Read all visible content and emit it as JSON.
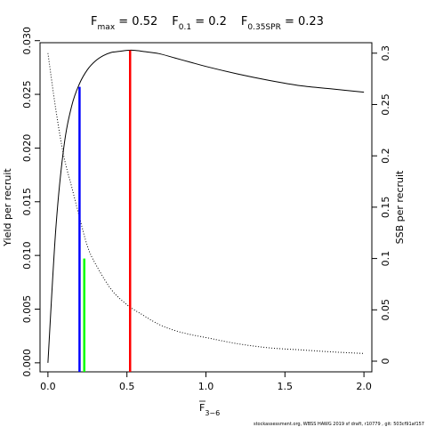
{
  "chart_data": {
    "type": "line",
    "title": {
      "fmax": {
        "sym": "F",
        "sub": "max",
        "val": " = 0.52"
      },
      "f01": {
        "sym": "F",
        "sub": "0.1",
        "val": " = 0.2"
      },
      "fspr": {
        "sym": "F",
        "sub": "0.35SPR",
        "val": " = 0.23"
      }
    },
    "xlabel": {
      "base": "F",
      "sub": "3−6"
    },
    "ylabel": "Yield per recruit",
    "y2label": "SSB per recruit",
    "xlim": [
      -0.05,
      2.05
    ],
    "ylim": [
      -0.00084,
      0.02981
    ],
    "y2lim": [
      -0.0104,
      0.3102
    ],
    "xticks": [
      "0.0",
      "0.5",
      "1.0",
      "1.5",
      "2.0"
    ],
    "xtick_values": [
      0,
      0.5,
      1.0,
      1.5,
      2.0
    ],
    "yticks": [
      "0.000",
      "0.005",
      "0.010",
      "0.015",
      "0.020",
      "0.025",
      "0.030"
    ],
    "ytick_values": [
      0,
      0.005,
      0.01,
      0.015,
      0.02,
      0.025,
      0.03
    ],
    "y2ticks": [
      "0",
      "0.05",
      "0.1",
      "0.15",
      "0.2",
      "0.25",
      "0.3"
    ],
    "y2tick_values": [
      0,
      0.05,
      0.1,
      0.15,
      0.2,
      0.25,
      0.3
    ],
    "series": [
      {
        "axis": "left",
        "style": "solid",
        "x": [
          0,
          0.05,
          0.1,
          0.15,
          0.2,
          0.25,
          0.3,
          0.35,
          0.4,
          0.45,
          0.5,
          0.55,
          0.6,
          0.7,
          0.8,
          0.9,
          1.0,
          1.2,
          1.4,
          1.6,
          1.8,
          2.0
        ],
        "values": [
          0.0,
          0.0125,
          0.02,
          0.0239,
          0.026,
          0.0273,
          0.0281,
          0.0286,
          0.0289,
          0.029,
          0.0291,
          0.0291,
          0.029,
          0.0288,
          0.0284,
          0.028,
          0.0276,
          0.0269,
          0.0263,
          0.0258,
          0.0255,
          0.0252
        ]
      },
      {
        "axis": "right",
        "style": "dotted",
        "x": [
          0,
          0.05,
          0.1,
          0.15,
          0.2,
          0.25,
          0.3,
          0.4,
          0.5,
          0.6,
          0.7,
          0.8,
          0.9,
          1.0,
          1.2,
          1.4,
          1.6,
          1.8,
          2.0
        ],
        "values": [
          0.3,
          0.245,
          0.2,
          0.17,
          0.14,
          0.112,
          0.095,
          0.07,
          0.055,
          0.045,
          0.036,
          0.03,
          0.026,
          0.023,
          0.017,
          0.013,
          0.011,
          0.009,
          0.0075
        ]
      }
    ],
    "reference_lines": [
      {
        "x": 0.2,
        "y": 0.0257,
        "axis": "left",
        "color": "#0000ff"
      },
      {
        "x": 0.23,
        "y": 0.1,
        "axis": "right",
        "color": "#00ff00"
      },
      {
        "x": 0.52,
        "y": 0.0291,
        "axis": "left",
        "color": "#ff0000"
      }
    ],
    "footnote": "stockassessment.org,  WBSS  HAWG  2019  sf  draft,  r10779 ,  git:  503cf91af157"
  }
}
